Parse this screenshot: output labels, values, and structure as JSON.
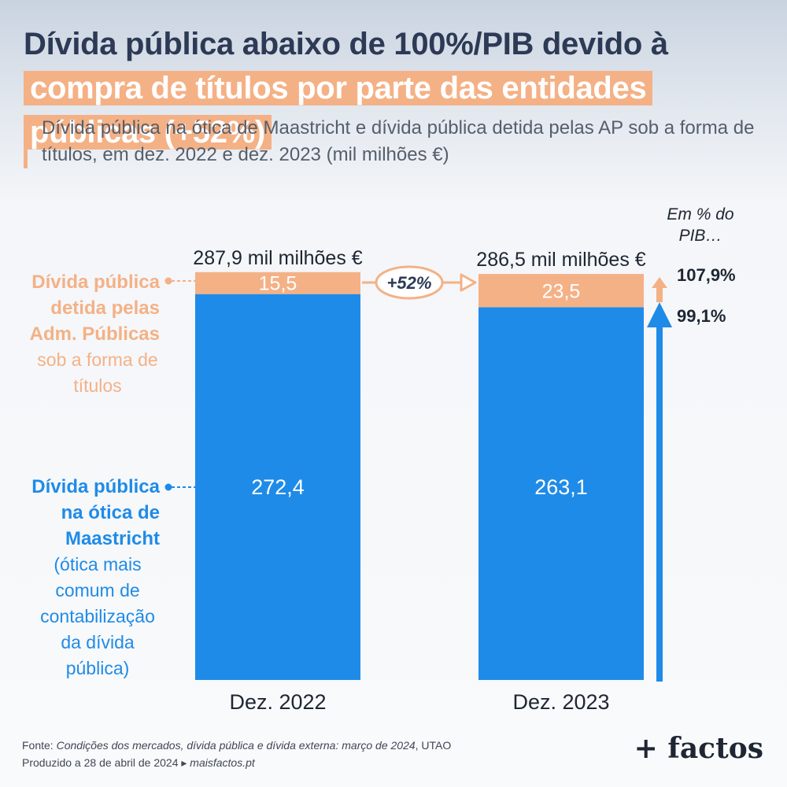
{
  "title": {
    "part1": "Dívida pública abaixo de 100%/PIB devido à ",
    "part2": "compra de títulos por parte das entidades públicas (+52%)"
  },
  "subtitle": "Dívida pública na ótica de Maastricht e dívida pública detida pelas AP sob a forma de títulos, em dez. 2022 e dez. 2023 (mil milhões €)",
  "colors": {
    "maastricht": "#1f8be8",
    "ap": "#f4b186",
    "title": "#2c3a55",
    "dark": "#1e2633"
  },
  "chart_data": {
    "type": "bar",
    "stacked": true,
    "categories": [
      "Dez. 2022",
      "Dez. 2023"
    ],
    "series": [
      {
        "name": "Dívida pública na ótica de Maastricht",
        "values": [
          272.4,
          263.1
        ],
        "labels": [
          "272,4",
          "263,1"
        ]
      },
      {
        "name": "Dívida pública detida pelas Adm. Públicas sob a forma de títulos",
        "values": [
          15.5,
          23.5
        ],
        "labels": [
          "15,5",
          "23,5"
        ]
      }
    ],
    "totals": [
      "287,9 mil milhões €",
      "286,5 mil milhões €"
    ],
    "growth_label": "+52%",
    "pib_header": [
      "Em % do",
      "PIB…"
    ],
    "pib_values": [
      "107,9%",
      "99,1%"
    ]
  },
  "legend": {
    "ap": {
      "bold_lines": [
        "Dívida pública",
        "detida pelas",
        "Adm. Públicas"
      ],
      "normal_lines": [
        "sob a forma de",
        "títulos"
      ]
    },
    "maastricht": {
      "bold_lines": [
        "Dívida pública",
        "na ótica de",
        "Maastricht"
      ],
      "normal_lines": [
        "(ótica mais",
        "comum de",
        "contabilização",
        "da dívida",
        "pública)"
      ]
    }
  },
  "footer": {
    "source_prefix": "Fonte: ",
    "source_italic": "Condições dos mercados, dívida pública e dívida externa: março de 2024",
    "source_suffix": ", UTAO",
    "produced_prefix": "Produzido a 28 de abril de 2024 ▸ ",
    "produced_site": "maisfactos.pt",
    "brand": "+ factos"
  }
}
